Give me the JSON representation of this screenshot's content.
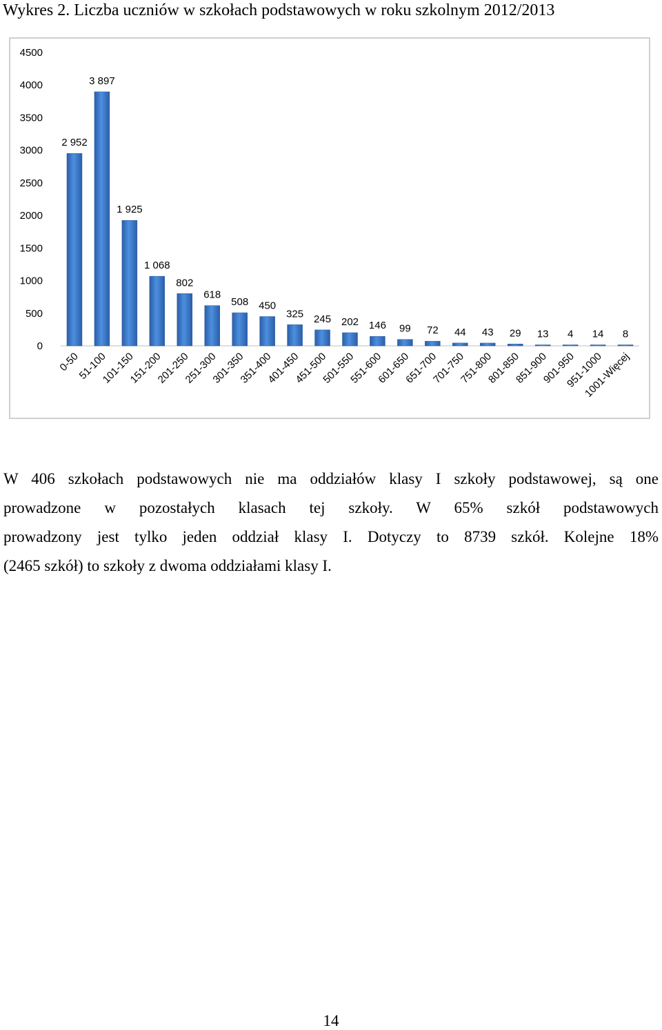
{
  "caption": "Wykres 2. Liczba uczniów w szkołach podstawowych w roku szkolnym 2012/2013",
  "chart_data": {
    "type": "bar",
    "title": "",
    "xlabel": "",
    "ylabel": "",
    "ylim": [
      0,
      4500
    ],
    "yticks": [
      0,
      500,
      1000,
      1500,
      2000,
      2500,
      3000,
      3500,
      4000,
      4500
    ],
    "grid": false,
    "legend": "none",
    "bar_color": "#3a7bd0",
    "categories": [
      "0-50",
      "51-100",
      "101-150",
      "151-200",
      "201-250",
      "251-300",
      "301-350",
      "351-400",
      "401-450",
      "451-500",
      "501-550",
      "551-600",
      "601-650",
      "651-700",
      "701-750",
      "751-800",
      "801-850",
      "851-900",
      "901-950",
      "951-1000",
      "1001-Więcej"
    ],
    "values": [
      2952,
      3897,
      1925,
      1068,
      802,
      618,
      508,
      450,
      325,
      245,
      202,
      146,
      99,
      72,
      44,
      43,
      29,
      13,
      4,
      14,
      8
    ],
    "data_labels": [
      "2 952",
      "3 897",
      "1 925",
      "1 068",
      "802",
      "618",
      "508",
      "450",
      "325",
      "245",
      "202",
      "146",
      "99",
      "72",
      "44",
      "43",
      "29",
      "13",
      "4",
      "14",
      "8"
    ]
  },
  "paragraph": {
    "lines": [
      "W 406 szkołach podstawowych nie ma oddziałów klasy I szkoły podstawowej, są one",
      "prowadzone w pozostałych klasach tej szkoły. W 65% szkół podstawowych",
      "prowadzony jest tylko jeden oddział klasy I. Dotyczy to 8739 szkół. Kolejne 18%",
      "(2465 szkół) to szkoły z dwoma oddziałami klasy I."
    ]
  },
  "page_number": "14"
}
